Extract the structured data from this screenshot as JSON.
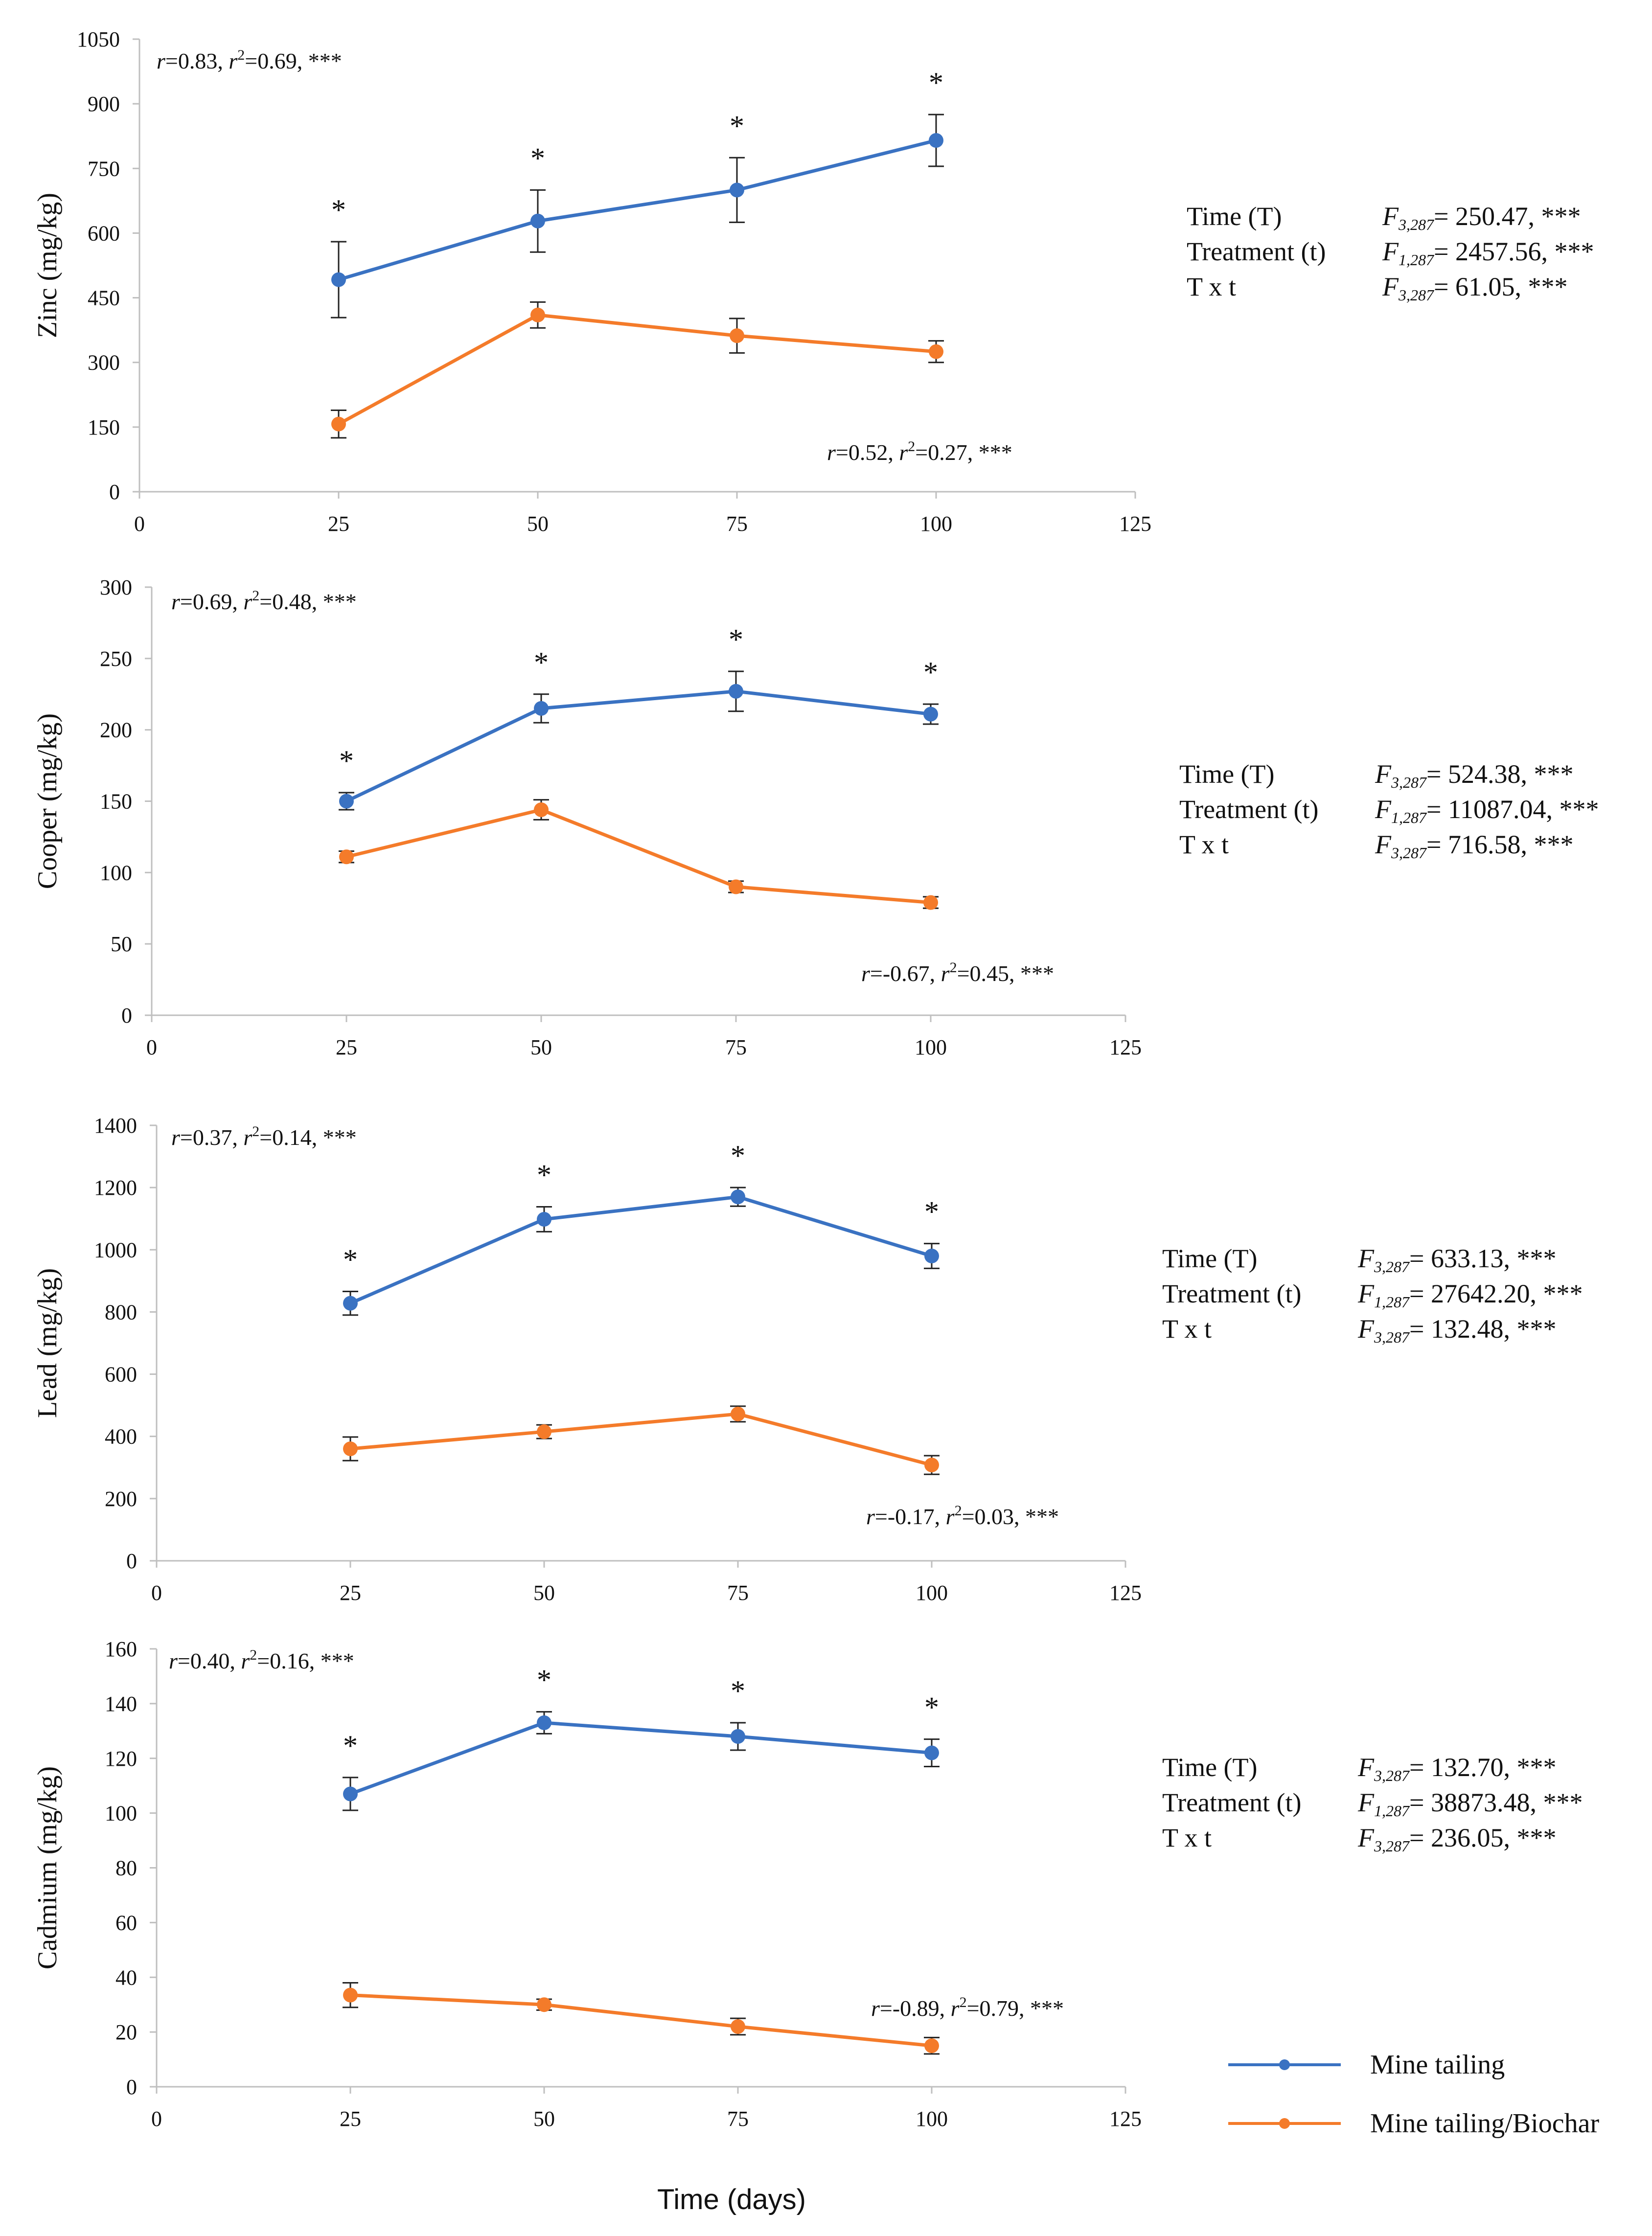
{
  "colors": {
    "mine_tailing": "#3a72c2",
    "mine_tailing_biochar": "#f47b2a",
    "axis": "#bfbfbf",
    "text": "#111111"
  },
  "shared_x": {
    "label": "Time (days)",
    "ticks": [
      0,
      25,
      50,
      75,
      100,
      125
    ],
    "tick_labels": [
      "0",
      "25",
      "50",
      "75",
      "100",
      "125"
    ],
    "range": [
      0,
      125
    ]
  },
  "legend": {
    "entries": [
      {
        "name": "Mine tailing",
        "color_key": "mine_tailing"
      },
      {
        "name": "Mine tailing/Biochar",
        "color_key": "mine_tailing_biochar"
      }
    ]
  },
  "chart_data": [
    {
      "type": "line",
      "ylabel": "Zinc (mg/kg)",
      "ylim": [
        0,
        1050
      ],
      "yticks": [
        0,
        150,
        300,
        450,
        600,
        750,
        900,
        1050
      ],
      "ytick_labels": [
        "0",
        "150",
        "300",
        "450",
        "600",
        "750",
        "900",
        "1050"
      ],
      "x": [
        25,
        50,
        75,
        100
      ],
      "series": [
        {
          "name": "Mine tailing",
          "values": [
            492,
            628,
            700,
            815
          ],
          "errors": [
            88,
            72,
            75,
            60
          ],
          "significance": [
            "*",
            "*",
            "*",
            "*"
          ]
        },
        {
          "name": "Mine tailing/Biochar",
          "values": [
            157,
            410,
            362,
            325
          ],
          "errors": [
            32,
            30,
            40,
            25
          ]
        }
      ],
      "corr_top": {
        "r": "r",
        "r_val": "=0.83, ",
        "r2": "r",
        "r2_sup": "2",
        "r2_val": "=0.69, ",
        "sig": "***"
      },
      "corr_bottom": {
        "r": "r",
        "r_val": "=0.52, ",
        "r2": "r",
        "r2_sup": "2",
        "r2_val": "=0.27, ",
        "sig": "***"
      },
      "stats": [
        {
          "label": "Time (T)",
          "f": "F",
          "sub": "3,287",
          "value": "= 250.47, ***"
        },
        {
          "label": "Treatment (t)",
          "f": "F",
          "sub": "1,287",
          "value": "= 2457.56, ***"
        },
        {
          "label": "T x t",
          "f": "F",
          "sub": "3,287",
          "value": "= 61.05, ***"
        }
      ]
    },
    {
      "type": "line",
      "ylabel": "Cooper (mg/kg)",
      "ylim": [
        0,
        300
      ],
      "yticks": [
        0,
        50,
        100,
        150,
        200,
        250,
        300
      ],
      "ytick_labels": [
        "0",
        "50",
        "100",
        "150",
        "200",
        "250",
        "300"
      ],
      "x": [
        25,
        50,
        75,
        100
      ],
      "series": [
        {
          "name": "Mine tailing",
          "values": [
            150,
            215,
            227,
            211
          ],
          "errors": [
            6,
            10,
            14,
            7
          ],
          "significance": [
            "*",
            "*",
            "*",
            "*"
          ]
        },
        {
          "name": "Mine tailing/Biochar",
          "values": [
            111,
            144,
            90,
            79
          ],
          "errors": [
            4,
            7,
            4,
            4
          ]
        }
      ],
      "corr_top": {
        "r": "r",
        "r_val": "=0.69, ",
        "r2": "r",
        "r2_sup": "2",
        "r2_val": "=0.48, ",
        "sig": "***"
      },
      "corr_bottom": {
        "r": "r",
        "r_val": "=-0.67, ",
        "r2": "r",
        "r2_sup": "2",
        "r2_val": "=0.45, ",
        "sig": "***"
      },
      "stats": [
        {
          "label": "Time (T)",
          "f": "F",
          "sub": "3,287",
          "value": "= 524.38, ***"
        },
        {
          "label": "Treatment (t)",
          "f": "F",
          "sub": "1,287",
          "value": "= 11087.04, ***"
        },
        {
          "label": "T x t",
          "f": "F",
          "sub": "3,287",
          "value": "= 716.58, ***"
        }
      ]
    },
    {
      "type": "line",
      "ylabel": "Lead (mg/kg)",
      "ylim": [
        0,
        1400
      ],
      "yticks": [
        0,
        200,
        400,
        600,
        800,
        1000,
        1200,
        1400
      ],
      "ytick_labels": [
        "0",
        "200",
        "400",
        "600",
        "800",
        "1000",
        "1200",
        "1400"
      ],
      "x": [
        25,
        50,
        75,
        100
      ],
      "series": [
        {
          "name": "Mine tailing",
          "values": [
            828,
            1098,
            1170,
            980
          ],
          "errors": [
            38,
            40,
            30,
            40
          ],
          "significance": [
            "*",
            "*",
            "*",
            "*"
          ]
        },
        {
          "name": "Mine tailing/Biochar",
          "values": [
            360,
            415,
            472,
            308
          ],
          "errors": [
            38,
            22,
            25,
            30
          ]
        }
      ],
      "corr_top": {
        "r": "r",
        "r_val": "=0.37, ",
        "r2": "r",
        "r2_sup": "2",
        "r2_val": "=0.14, ",
        "sig": "***"
      },
      "corr_bottom": {
        "r": "r",
        "r_val": "=-0.17, ",
        "r2": "r",
        "r2_sup": "2",
        "r2_val": "=0.03, ",
        "sig": "***"
      },
      "stats": [
        {
          "label": "Time (T)",
          "f": "F",
          "sub": "3,287",
          "value": "= 633.13, ***"
        },
        {
          "label": "Treatment (t)",
          "f": "F",
          "sub": "1,287",
          "value": "= 27642.20, ***"
        },
        {
          "label": "T x t",
          "f": "F",
          "sub": "3,287",
          "value": "= 132.48, ***"
        }
      ]
    },
    {
      "type": "line",
      "ylabel": "Cadmium (mg/kg)",
      "ylim": [
        0,
        160
      ],
      "yticks": [
        0,
        20,
        40,
        60,
        80,
        100,
        120,
        140,
        160
      ],
      "ytick_labels": [
        "0",
        "20",
        "40",
        "60",
        "80",
        "100",
        "120",
        "140",
        "160"
      ],
      "x": [
        25,
        50,
        75,
        100
      ],
      "series": [
        {
          "name": "Mine tailing",
          "values": [
            107,
            133,
            128,
            122
          ],
          "errors": [
            6,
            4,
            5,
            5
          ],
          "significance": [
            "*",
            "*",
            "*",
            "*"
          ]
        },
        {
          "name": "Mine tailing/Biochar",
          "values": [
            33.5,
            30,
            22,
            15
          ],
          "errors": [
            4.5,
            2,
            3,
            3
          ]
        }
      ],
      "corr_top": {
        "r": "r",
        "r_val": "=0.40, ",
        "r2": "r",
        "r2_sup": "2",
        "r2_val": "=0.16, ",
        "sig": "***"
      },
      "corr_bottom": {
        "r": "r",
        "r_val": "=-0.89, ",
        "r2": "r",
        "r2_sup": "2",
        "r2_val": "=0.79, ",
        "sig": "***"
      },
      "stats": [
        {
          "label": "Time (T)",
          "f": "F",
          "sub": "3,287",
          "value": "= 132.70, ***"
        },
        {
          "label": "Treatment (t)",
          "f": "F",
          "sub": "1,287",
          "value": "= 38873.48, ***"
        },
        {
          "label": "T x t",
          "f": "F",
          "sub": "3,287",
          "value": "= 236.05, ***"
        }
      ]
    }
  ]
}
